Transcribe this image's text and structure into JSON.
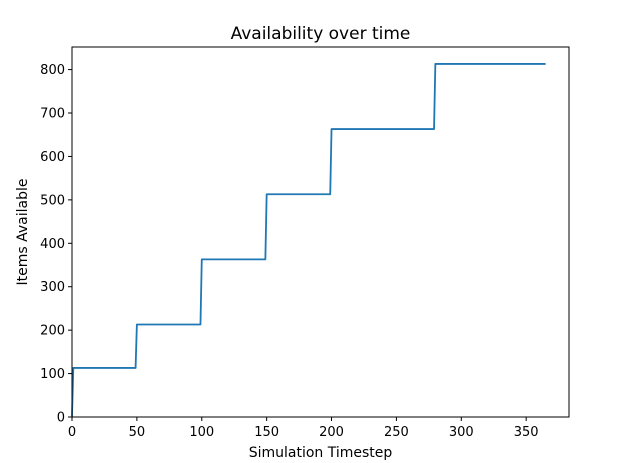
{
  "chart_data": {
    "type": "line",
    "title": "Availability over time",
    "xlabel": "Simulation Timestep",
    "ylabel": "Items Available",
    "xlim": [
      0,
      383
    ],
    "ylim": [
      0,
      852
    ],
    "xticks": [
      0,
      50,
      100,
      150,
      200,
      250,
      300,
      350
    ],
    "yticks": [
      0,
      100,
      200,
      300,
      400,
      500,
      600,
      700,
      800
    ],
    "grid": false,
    "series": [
      {
        "color": "#1f77b4",
        "x": [
          0,
          1,
          49,
          50,
          99,
          100,
          149,
          150,
          199,
          200,
          279,
          280,
          365
        ],
        "y": [
          0,
          113,
          113,
          213,
          213,
          363,
          363,
          513,
          513,
          663,
          663,
          813,
          813
        ]
      }
    ]
  }
}
